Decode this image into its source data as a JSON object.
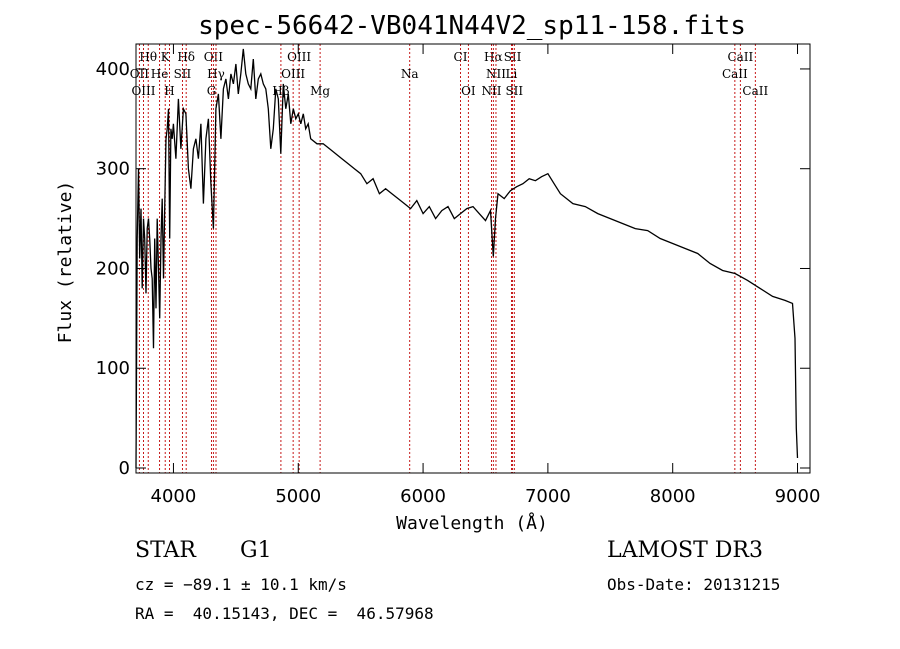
{
  "chart_data": {
    "type": "line",
    "title": "spec-56642-VB041N44V2_sp11-158.fits",
    "xlabel": "Wavelength (Å)",
    "ylabel": "Flux (relative)",
    "xlim": [
      3700,
      9100
    ],
    "ylim": [
      -5,
      425
    ],
    "xticks": [
      4000,
      5000,
      6000,
      7000,
      8000,
      9000
    ],
    "yticks": [
      0,
      100,
      200,
      300,
      400
    ],
    "series": [
      {
        "name": "flux",
        "x": [
          3700,
          3710,
          3720,
          3730,
          3740,
          3750,
          3760,
          3770,
          3780,
          3790,
          3800,
          3810,
          3820,
          3830,
          3840,
          3850,
          3860,
          3870,
          3880,
          3890,
          3900,
          3910,
          3920,
          3930,
          3940,
          3950,
          3960,
          3970,
          3980,
          3990,
          4000,
          4020,
          4040,
          4060,
          4080,
          4100,
          4120,
          4140,
          4160,
          4180,
          4200,
          4220,
          4240,
          4260,
          4280,
          4300,
          4320,
          4340,
          4360,
          4380,
          4400,
          4420,
          4440,
          4460,
          4480,
          4500,
          4520,
          4540,
          4560,
          4580,
          4600,
          4620,
          4640,
          4660,
          4680,
          4700,
          4720,
          4740,
          4760,
          4780,
          4800,
          4820,
          4840,
          4860,
          4880,
          4900,
          4920,
          4940,
          4960,
          4980,
          5000,
          5020,
          5040,
          5060,
          5080,
          5100,
          5150,
          5200,
          5250,
          5300,
          5350,
          5400,
          5450,
          5500,
          5550,
          5600,
          5650,
          5700,
          5750,
          5800,
          5850,
          5900,
          5950,
          6000,
          6050,
          6100,
          6150,
          6200,
          6250,
          6300,
          6350,
          6400,
          6450,
          6500,
          6540,
          6563,
          6580,
          6600,
          6650,
          6700,
          6750,
          6800,
          6850,
          6900,
          6950,
          7000,
          7050,
          7100,
          7150,
          7200,
          7300,
          7400,
          7500,
          7600,
          7700,
          7800,
          7900,
          8000,
          8100,
          8200,
          8300,
          8400,
          8500,
          8600,
          8700,
          8800,
          8900,
          8960,
          8980,
          8990,
          9000
        ],
        "values": [
          0,
          230,
          300,
          210,
          260,
          180,
          250,
          230,
          175,
          240,
          250,
          230,
          200,
          190,
          120,
          230,
          160,
          250,
          200,
          150,
          230,
          270,
          190,
          260,
          330,
          340,
          360,
          230,
          340,
          330,
          345,
          310,
          370,
          320,
          360,
          355,
          300,
          280,
          320,
          330,
          310,
          345,
          265,
          330,
          350,
          285,
          240,
          360,
          375,
          330,
          380,
          390,
          370,
          395,
          385,
          405,
          375,
          395,
          420,
          395,
          385,
          380,
          410,
          370,
          390,
          395,
          385,
          380,
          360,
          320,
          340,
          380,
          370,
          315,
          385,
          360,
          375,
          345,
          360,
          350,
          355,
          345,
          355,
          340,
          345,
          330,
          325,
          325,
          320,
          315,
          310,
          305,
          300,
          295,
          285,
          290,
          275,
          280,
          275,
          270,
          265,
          260,
          268,
          255,
          262,
          250,
          258,
          262,
          250,
          255,
          260,
          262,
          255,
          248,
          258,
          212,
          250,
          275,
          270,
          278,
          282,
          285,
          290,
          288,
          292,
          295,
          285,
          275,
          270,
          265,
          262,
          255,
          250,
          245,
          240,
          238,
          230,
          225,
          220,
          215,
          205,
          198,
          195,
          188,
          180,
          172,
          168,
          165,
          130,
          40,
          10
        ]
      }
    ],
    "lines": [
      {
        "name": "Hθ",
        "x": 3798,
        "row": 1
      },
      {
        "name": "K",
        "x": 3934,
        "row": 1
      },
      {
        "name": "Hδ",
        "x": 4102,
        "row": 1
      },
      {
        "name": "OII",
        "x": 4320,
        "row": 1
      },
      {
        "name": "OIII",
        "x": 5007,
        "row": 1
      },
      {
        "name": "CI",
        "x": 6300,
        "row": 1
      },
      {
        "name": "Hα",
        "x": 6563,
        "row": 1
      },
      {
        "name": "SII",
        "x": 6717,
        "row": 1
      },
      {
        "name": "CaII",
        "x": 8542,
        "row": 1
      },
      {
        "name": "OII",
        "x": 3727,
        "row": 2
      },
      {
        "name": "He",
        "x": 3889,
        "row": 2
      },
      {
        "name": "SII",
        "x": 4072,
        "row": 2
      },
      {
        "name": "Hγ",
        "x": 4341,
        "row": 2
      },
      {
        "name": "OIII",
        "x": 4959,
        "row": 2
      },
      {
        "name": "Na",
        "x": 5893,
        "row": 2
      },
      {
        "name": "NII",
        "x": 6584,
        "row": 2
      },
      {
        "name": "Li",
        "x": 6708,
        "row": 2
      },
      {
        "name": "CaII",
        "x": 8498,
        "row": 2
      },
      {
        "name": "OIII",
        "x": 3760,
        "row": 3
      },
      {
        "name": "H",
        "x": 3968,
        "row": 3
      },
      {
        "name": "G",
        "x": 4305,
        "row": 3
      },
      {
        "name": "Hβ",
        "x": 4861,
        "row": 3
      },
      {
        "name": "Mg",
        "x": 5175,
        "row": 3
      },
      {
        "name": "OI",
        "x": 6363,
        "row": 3
      },
      {
        "name": "NII",
        "x": 6548,
        "row": 3
      },
      {
        "name": "SII",
        "x": 6731,
        "row": 3
      },
      {
        "name": "CaII",
        "x": 8662,
        "row": 3
      }
    ]
  },
  "info": {
    "class": "STAR",
    "subclass": "G1",
    "survey": "LAMOST DR3",
    "cz": "cz = −89.1 ± 10.1 km/s",
    "obs_date": "Obs-Date: 20131215",
    "radec": "RA =  40.15143, DEC =  46.57968"
  }
}
